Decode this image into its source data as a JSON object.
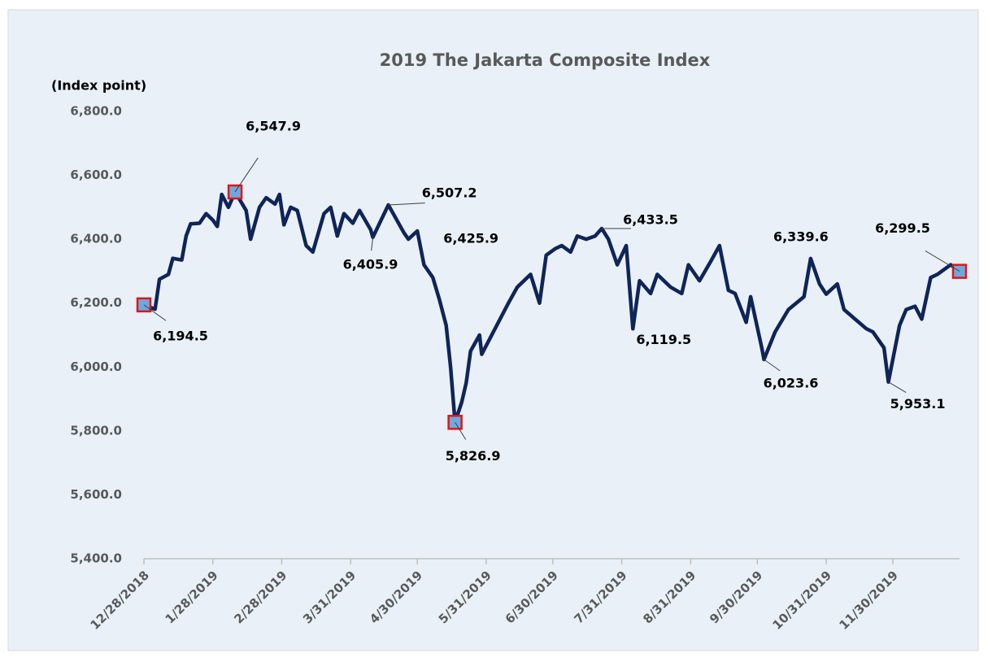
{
  "chart_data": {
    "type": "line",
    "title": "2019 The Jakarta Composite Index",
    "y_label": "(Index point)",
    "color": "#0f2557",
    "marker_color": "#e0151b",
    "marker_fill": "#6fa8dc",
    "ylim": [
      5400,
      6800
    ],
    "yticks": [
      {
        "value": 5400,
        "label": "5,400.0"
      },
      {
        "value": 5600,
        "label": "5,600.0"
      },
      {
        "value": 5800,
        "label": "5,800.0"
      },
      {
        "value": 6000,
        "label": "6,000.0"
      },
      {
        "value": 6200,
        "label": "6,200.0"
      },
      {
        "value": 6400,
        "label": "6,400.0"
      },
      {
        "value": 6600,
        "label": "6,600.0"
      },
      {
        "value": 6800,
        "label": "6,800.0"
      }
    ],
    "xlim": [
      "12/28/2018",
      "12/30/2019"
    ],
    "xticks": [
      "12/28/2018",
      "1/28/2019",
      "2/28/2019",
      "3/31/2019",
      "4/30/2019",
      "5/31/2019",
      "6/30/2019",
      "7/31/2019",
      "8/31/2019",
      "9/30/2019",
      "10/31/2019",
      "11/30/2019"
    ],
    "x": [
      "12/28/2018",
      "1/2/2019",
      "1/4/2019",
      "1/8/2019",
      "1/10/2019",
      "1/14/2019",
      "1/16/2019",
      "1/18/2019",
      "1/22/2019",
      "1/25/2019",
      "1/28/2019",
      "1/30/2019",
      "2/1/2019",
      "2/4/2019",
      "2/7/2019",
      "2/12/2019",
      "2/14/2019",
      "2/18/2019",
      "2/21/2019",
      "2/25/2019",
      "2/27/2019",
      "3/1/2019",
      "3/4/2019",
      "3/7/2019",
      "3/11/2019",
      "3/14/2019",
      "3/19/2019",
      "3/22/2019",
      "3/25/2019",
      "3/28/2019",
      "4/1/2019",
      "4/4/2019",
      "4/9/2019",
      "4/10/2019",
      "4/17/2019",
      "4/24/2019",
      "4/26/2019",
      "4/30/2019",
      "5/3/2019",
      "5/7/2019",
      "5/10/2019",
      "5/13/2019",
      "5/15/2019",
      "5/17/2019",
      "5/20/2019",
      "5/22/2019",
      "5/24/2019",
      "5/28/2019",
      "5/29/2019",
      "6/10/2019",
      "6/14/2019",
      "6/20/2019",
      "6/24/2019",
      "6/27/2019",
      "7/1/2019",
      "7/4/2019",
      "7/8/2019",
      "7/11/2019",
      "7/15/2019",
      "7/19/2019",
      "7/22/2019",
      "7/25/2019",
      "7/29/2019",
      "8/2/2019",
      "8/5/2019",
      "8/8/2019",
      "8/13/2019",
      "8/16/2019",
      "8/22/2019",
      "8/27/2019",
      "8/30/2019",
      "9/4/2019",
      "9/9/2019",
      "9/13/2019",
      "9/17/2019",
      "9/20/2019",
      "9/25/2019",
      "9/27/2019",
      "10/2/2019",
      "10/3/2019",
      "10/8/2019",
      "10/14/2019",
      "10/21/2019",
      "10/24/2019",
      "10/28/2019",
      "10/31/2019",
      "11/5/2019",
      "11/8/2019",
      "11/13/2019",
      "11/18/2019",
      "11/21/2019",
      "11/26/2019",
      "11/28/2019",
      "12/3/2019",
      "12/6/2019",
      "12/10/2019",
      "12/13/2019",
      "12/17/2019",
      "12/20/2019",
      "12/26/2019",
      "12/30/2019"
    ],
    "values": [
      6194.5,
      6181,
      6275,
      6290,
      6340,
      6335,
      6410,
      6448,
      6450,
      6480,
      6460,
      6440,
      6540,
      6500,
      6547.9,
      6490,
      6400,
      6500,
      6530,
      6510,
      6540,
      6445,
      6500,
      6490,
      6380,
      6360,
      6480,
      6500,
      6410,
      6480,
      6450,
      6490,
      6430,
      6405.9,
      6507.2,
      6420,
      6400,
      6425.9,
      6320,
      6280,
      6210,
      6130,
      6000,
      5826.9,
      5890,
      5950,
      6050,
      6100,
      6040,
      6200,
      6250,
      6290,
      6200,
      6350,
      6370,
      6380,
      6360,
      6410,
      6400,
      6410,
      6433.5,
      6400,
      6320,
      6380,
      6119.5,
      6270,
      6230,
      6290,
      6250,
      6230,
      6320,
      6270,
      6330,
      6380,
      6240,
      6230,
      6140,
      6220,
      6060,
      6023.6,
      6110,
      6180,
      6220,
      6339.6,
      6260,
      6228,
      6260,
      6180,
      6150,
      6120,
      6110,
      6060,
      5953.1,
      6130,
      6180,
      6190,
      6150,
      6280,
      6290,
      6320,
      6299.5
    ],
    "value_labels": [
      "6,194.5",
      null,
      null,
      null,
      null,
      null,
      null,
      null,
      null,
      null,
      null,
      null,
      null,
      null,
      "6,547.9",
      null,
      null,
      null,
      null,
      null,
      null,
      null,
      null,
      null,
      null,
      null,
      null,
      null,
      null,
      null,
      null,
      null,
      null,
      "6,405.9",
      "6,507.2",
      null,
      null,
      "6,425.9",
      null,
      null,
      null,
      null,
      null,
      "5,826.9",
      null,
      null,
      null,
      null,
      null,
      null,
      null,
      null,
      null,
      null,
      null,
      null,
      null,
      null,
      null,
      null,
      "6,433.5",
      null,
      null,
      null,
      "6,119.5",
      null,
      null,
      null,
      null,
      null,
      null,
      null,
      null,
      null,
      null,
      null,
      null,
      null,
      null,
      "6,023.6",
      null,
      null,
      null,
      "6,339.6",
      null,
      null,
      null,
      null,
      null,
      null,
      null,
      null,
      "5,953.1",
      null,
      null,
      null,
      null,
      null,
      null,
      null,
      "6,299.5"
    ],
    "markers": [
      "12/28/2018",
      "2/7/2019",
      "5/17/2019",
      "12/30/2019"
    ]
  }
}
